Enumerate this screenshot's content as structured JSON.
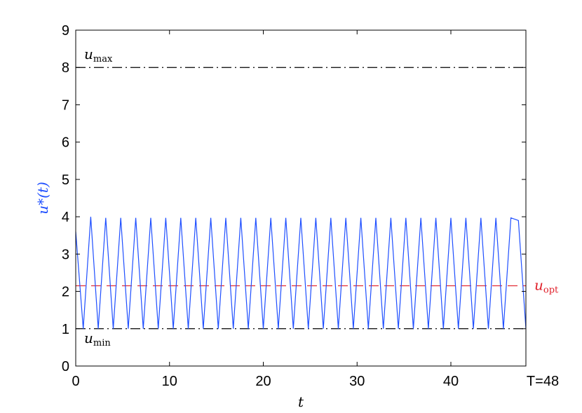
{
  "chart_data": {
    "type": "line",
    "title": "",
    "xlabel": "t",
    "ylabel": "u*(t)",
    "xlim": [
      0,
      48
    ],
    "ylim": [
      0,
      9
    ],
    "x_ticks": [
      "0",
      "10",
      "20",
      "30",
      "40"
    ],
    "y_ticks": [
      "0",
      "1",
      "2",
      "3",
      "4",
      "5",
      "6",
      "7",
      "8",
      "9"
    ],
    "extra_x_label": "T=48",
    "grid": false,
    "series": [
      {
        "name": "u*(t)",
        "color": "#1f4fff",
        "style": "solid",
        "x": [
          0,
          0.8,
          1.6,
          2.4,
          3.2,
          4.0,
          4.8,
          5.6,
          6.4,
          7.2,
          8.0,
          8.8,
          9.6,
          10.4,
          11.2,
          12.0,
          12.8,
          13.6,
          14.4,
          15.2,
          16.0,
          16.8,
          17.6,
          18.4,
          19.2,
          20.0,
          20.8,
          21.6,
          22.4,
          23.2,
          24.0,
          24.8,
          25.6,
          26.4,
          27.2,
          28.0,
          28.8,
          29.6,
          30.4,
          31.2,
          32.0,
          32.8,
          33.6,
          34.4,
          35.2,
          36.0,
          36.8,
          37.6,
          38.4,
          39.2,
          40.0,
          40.8,
          41.6,
          42.4,
          43.2,
          44.0,
          44.8,
          45.6,
          46.4,
          47.2,
          48.0
        ],
        "y": [
          3.6,
          1.0,
          4.0,
          1.0,
          3.97,
          1.0,
          3.97,
          1.0,
          3.97,
          1.0,
          3.97,
          1.0,
          3.97,
          1.0,
          3.97,
          1.0,
          3.97,
          1.0,
          3.97,
          1.0,
          3.97,
          1.0,
          3.97,
          1.0,
          3.97,
          1.0,
          3.97,
          1.0,
          3.97,
          1.0,
          3.97,
          1.0,
          3.97,
          1.0,
          3.97,
          1.0,
          3.97,
          1.0,
          3.97,
          1.0,
          3.97,
          1.0,
          3.97,
          1.0,
          3.97,
          1.0,
          3.97,
          1.0,
          3.97,
          1.0,
          3.97,
          1.0,
          3.97,
          1.0,
          3.97,
          1.0,
          3.97,
          1.0,
          3.97,
          3.9,
          1.0
        ]
      }
    ],
    "reference_lines": [
      {
        "label_main": "u",
        "label_sub": "max",
        "y": 8,
        "color": "#000000",
        "style": "dashdot",
        "label_position": "inside-top-left"
      },
      {
        "label_main": "u",
        "label_sub": "opt",
        "y": 2.15,
        "color": "#e0202a",
        "style": "dashed",
        "label_position": "outside-right"
      },
      {
        "label_main": "u",
        "label_sub": "min",
        "y": 1,
        "color": "#000000",
        "style": "dashdot",
        "label_position": "inside-bottom-left"
      }
    ],
    "ylabel_color": "#1f4fff"
  }
}
